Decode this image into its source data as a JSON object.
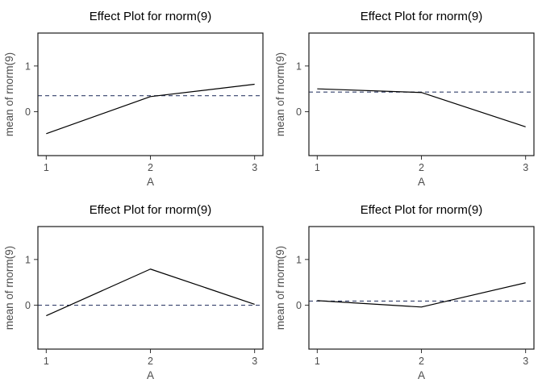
{
  "page": {
    "background": "#ffffff",
    "description": "2x2 grid of effect plots"
  },
  "colors": {
    "effect_line": "#000000",
    "mean_line": "#34406b",
    "panel_border": "#1a1a1a",
    "tick_mark": "#333333",
    "tick_text": "#4d4d4d",
    "title_text": "#000000"
  },
  "chart_data": [
    {
      "type": "line",
      "title": "Effect Plot for rnorm(9)",
      "xlabel": "A",
      "ylabel": "mean of rnorm(9)",
      "x": [
        1,
        2,
        3
      ],
      "series": [
        {
          "name": "effect",
          "values": [
            -0.48,
            0.33,
            0.6
          ]
        },
        {
          "name": "overall-mean-dashed",
          "value": 0.35
        }
      ],
      "xlim": [
        0.92,
        3.08
      ],
      "ylim": [
        -0.96,
        1.72
      ],
      "xticks": [
        1,
        2,
        3
      ],
      "yticks": [
        0,
        1
      ],
      "grid": false,
      "legend": "none"
    },
    {
      "type": "line",
      "title": "Effect Plot for rnorm(9)",
      "xlabel": "A",
      "ylabel": "mean of rnorm(9)",
      "x": [
        1,
        2,
        3
      ],
      "series": [
        {
          "name": "effect",
          "values": [
            0.5,
            0.42,
            -0.33
          ]
        },
        {
          "name": "overall-mean-dashed",
          "value": 0.43
        }
      ],
      "xlim": [
        0.92,
        3.08
      ],
      "ylim": [
        -0.96,
        1.72
      ],
      "xticks": [
        1,
        2,
        3
      ],
      "yticks": [
        0,
        1
      ],
      "grid": false,
      "legend": "none"
    },
    {
      "type": "line",
      "title": "Effect Plot for rnorm(9)",
      "xlabel": "A",
      "ylabel": "mean of rnorm(9)",
      "x": [
        1,
        2,
        3
      ],
      "series": [
        {
          "name": "effect",
          "values": [
            -0.23,
            0.79,
            0.02
          ]
        },
        {
          "name": "overall-mean-dashed",
          "value": 0.0
        }
      ],
      "xlim": [
        0.92,
        3.08
      ],
      "ylim": [
        -0.96,
        1.72
      ],
      "xticks": [
        1,
        2,
        3
      ],
      "yticks": [
        0,
        1
      ],
      "grid": false,
      "legend": "none"
    },
    {
      "type": "line",
      "title": "Effect Plot for rnorm(9)",
      "xlabel": "A",
      "ylabel": "mean of rnorm(9)",
      "x": [
        1,
        2,
        3
      ],
      "series": [
        {
          "name": "effect",
          "values": [
            0.1,
            -0.04,
            0.49
          ]
        },
        {
          "name": "overall-mean-dashed",
          "value": 0.09
        }
      ],
      "xlim": [
        0.92,
        3.08
      ],
      "ylim": [
        -0.96,
        1.72
      ],
      "xticks": [
        1,
        2,
        3
      ],
      "yticks": [
        0,
        1
      ],
      "grid": false,
      "legend": "none"
    }
  ]
}
